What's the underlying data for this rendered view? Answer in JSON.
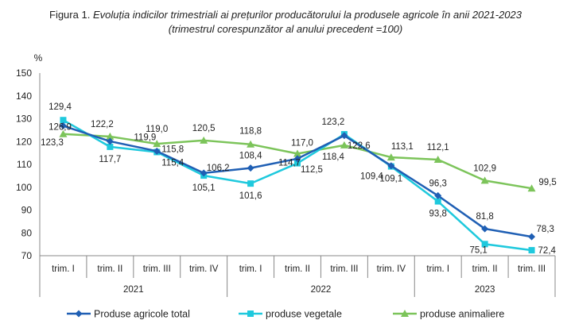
{
  "title_prefix": "Figura 1.",
  "title_main": "Evoluția indicilor trimestriali ai prețurilor producătorului la produsele agricole în anii 2021-2023",
  "subtitle": "(trimestrul corespunzător al anului precedent =100)",
  "chart_data": {
    "type": "line",
    "title": "Evoluția indicilor trimestriali ai prețurilor producătorului la produsele agricole în anii 2021-2023",
    "subtitle": "(trimestrul corespunzător al anului precedent =100)",
    "ylabel": "%",
    "xlabel": "",
    "ylim": [
      70,
      150
    ],
    "yticks": [
      70,
      80,
      90,
      100,
      110,
      120,
      130,
      140,
      150
    ],
    "grid": false,
    "legend_position": "bottom",
    "categories": [
      "trim. I",
      "trim. II",
      "trim. III",
      "trim. IV",
      "trim. I",
      "trim. II",
      "trim. III",
      "trim. IV",
      "trim. I",
      "trim. II",
      "trim. III"
    ],
    "groups": [
      {
        "label": "2021",
        "count": 4
      },
      {
        "label": "2022",
        "count": 4
      },
      {
        "label": "2023",
        "count": 3
      }
    ],
    "series": [
      {
        "name": "Produse agricole  total",
        "color": "#1f5fb4",
        "marker": "diamond",
        "values": [
          126.9,
          120.1,
          115.8,
          106.2,
          108.4,
          112.5,
          122.6,
          109.4,
          96.3,
          81.8,
          78.3
        ],
        "labels": [
          "126,9",
          "",
          "115,8",
          "106,2",
          "108,4",
          "112,5",
          "122,6",
          "109,4",
          "96,3",
          "81,8",
          "78,3"
        ]
      },
      {
        "name": "produse vegetale",
        "color": "#1fc9dd",
        "marker": "square",
        "values": [
          129.4,
          117.7,
          115.4,
          105.1,
          101.6,
          110.5,
          123.2,
          109.1,
          93.8,
          75.1,
          72.4
        ],
        "labels": [
          "129,4",
          "117,7",
          "115,4",
          "105,1",
          "101,6",
          "",
          "123,2",
          "109,1",
          "93,8",
          "75,1",
          "72,4"
        ]
      },
      {
        "name": "produse animaliere",
        "color": "#7cc45a",
        "marker": "triangle",
        "values": [
          123.3,
          122.2,
          119.0,
          120.5,
          118.8,
          114.7,
          118.4,
          113.1,
          112.1,
          102.9,
          99.5
        ],
        "labels": [
          "123,3",
          "122,2",
          "119,0",
          "120,5",
          "118,8",
          "114,7",
          "118,4",
          "113,1",
          "112,1",
          "102,9",
          "99,5"
        ]
      }
    ],
    "extra_labels": [
      "119,9",
      "117,0"
    ]
  }
}
